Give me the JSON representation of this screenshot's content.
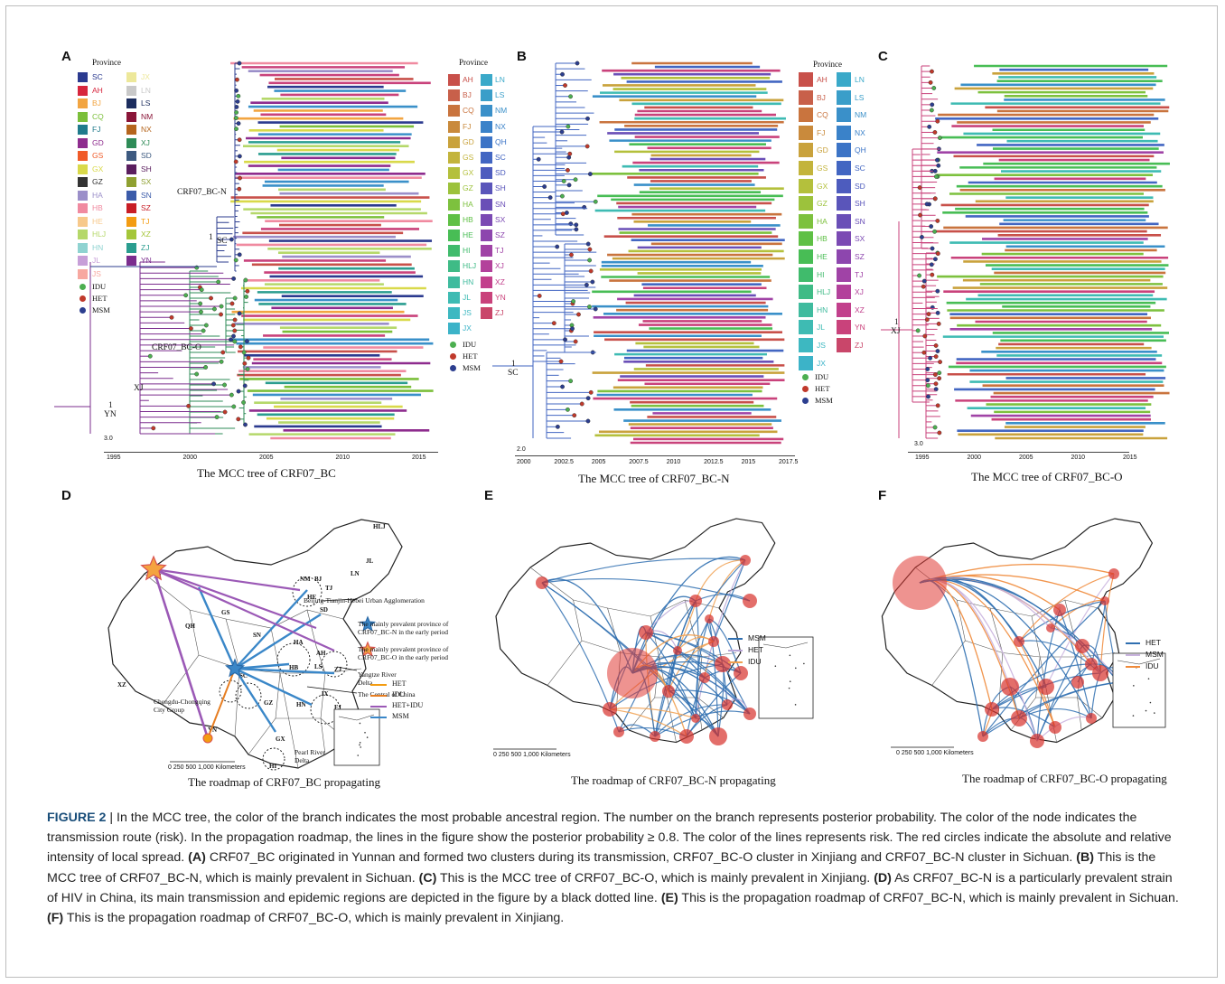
{
  "panels": {
    "A": {
      "label": "A",
      "title": "The MCC tree of CRF07_BC",
      "cluster_n": "CRF07_BC-N",
      "cluster_o": "CRF07_BC-O",
      "root_prob": "1",
      "root_region": "YN",
      "xj_label": "XJ",
      "sc_prob": "1",
      "sc_label": "SC",
      "scale": "3.0",
      "axis_ticks": [
        "1995",
        "2000",
        "2005",
        "2010",
        "2015"
      ]
    },
    "B": {
      "label": "B",
      "title": "The MCC tree of CRF07_BC-N",
      "root_prob": "1",
      "root_region": "SC",
      "scale": "2.0",
      "axis_ticks": [
        "2000",
        "2002.5",
        "2005",
        "2007.5",
        "2010",
        "2012.5",
        "2015",
        "2017.5"
      ]
    },
    "C": {
      "label": "C",
      "title": "The MCC tree of CRF07_BC-O",
      "root_prob": "1",
      "root_region": "XJ",
      "scale": "3.0",
      "axis_ticks": [
        "1995",
        "2000",
        "2005",
        "2010",
        "2015"
      ]
    },
    "D": {
      "label": "D",
      "title": "The roadmap of CRF07_BC propagating"
    },
    "E": {
      "label": "E",
      "title": "The roadmap of CRF07_BC-N propagating"
    },
    "F": {
      "label": "F",
      "title": "The roadmap of CRF07_BC-O propagating"
    }
  },
  "legend_A": {
    "heading": "Province",
    "col1": [
      {
        "code": "SC",
        "color": "#2b3a8f"
      },
      {
        "code": "AH",
        "color": "#d7263d"
      },
      {
        "code": "BJ",
        "color": "#f2a541"
      },
      {
        "code": "CQ",
        "color": "#7bbf3a"
      },
      {
        "code": "FJ",
        "color": "#1f7a8c"
      },
      {
        "code": "GD",
        "color": "#8e2c8e"
      },
      {
        "code": "GS",
        "color": "#f05a28"
      },
      {
        "code": "GX",
        "color": "#d9d94a"
      },
      {
        "code": "GZ",
        "color": "#333333"
      },
      {
        "code": "HA",
        "color": "#9b8fc9"
      },
      {
        "code": "HB",
        "color": "#f08aa0"
      },
      {
        "code": "HE",
        "color": "#f7c98b"
      },
      {
        "code": "HLJ",
        "color": "#b5d86a"
      },
      {
        "code": "HN",
        "color": "#8fd3d1"
      },
      {
        "code": "JL",
        "color": "#c79fd8"
      },
      {
        "code": "JS",
        "color": "#f7a8a0"
      }
    ],
    "col2": [
      {
        "code": "JX",
        "color": "#ede89a"
      },
      {
        "code": "LN",
        "color": "#c9c9c9"
      },
      {
        "code": "LS",
        "color": "#1c2d5e"
      },
      {
        "code": "NM",
        "color": "#8a1538"
      },
      {
        "code": "NX",
        "color": "#b5651d"
      },
      {
        "code": "XJ",
        "color": "#2e8b57"
      },
      {
        "code": "SD",
        "color": "#3d5a80"
      },
      {
        "code": "SH",
        "color": "#5a1e5e"
      },
      {
        "code": "SX",
        "color": "#8fa031"
      },
      {
        "code": "SN",
        "color": "#3b5ba9"
      },
      {
        "code": "SZ",
        "color": "#c81d25"
      },
      {
        "code": "TJ",
        "color": "#f39c12"
      },
      {
        "code": "XZ",
        "color": "#a4c639"
      },
      {
        "code": "ZJ",
        "color": "#2a9d8f"
      },
      {
        "code": "YN",
        "color": "#7b2d8e"
      }
    ],
    "routes": [
      {
        "name": "IDU",
        "color": "#4caf50"
      },
      {
        "name": "HET",
        "color": "#c0392b"
      },
      {
        "name": "MSM",
        "color": "#2c3e8f"
      }
    ]
  },
  "legend_B": {
    "heading": "Province",
    "col1": [
      {
        "code": "AH",
        "color": "#c8504a"
      },
      {
        "code": "BJ",
        "color": "#c8604a"
      },
      {
        "code": "CQ",
        "color": "#c9743e"
      },
      {
        "code": "FJ",
        "color": "#c98a3c"
      },
      {
        "code": "GD",
        "color": "#c9a23c"
      },
      {
        "code": "GS",
        "color": "#c3b43c"
      },
      {
        "code": "GX",
        "color": "#b4c03c"
      },
      {
        "code": "GZ",
        "color": "#9cc23c"
      },
      {
        "code": "HA",
        "color": "#7dc13e"
      },
      {
        "code": "HB",
        "color": "#5fc045"
      },
      {
        "code": "HE",
        "color": "#48bd55"
      },
      {
        "code": "HI",
        "color": "#40bb6c"
      },
      {
        "code": "HLJ",
        "color": "#3fbb86"
      },
      {
        "code": "HN",
        "color": "#3fbb9e"
      },
      {
        "code": "JL",
        "color": "#3ebbb3"
      },
      {
        "code": "JS",
        "color": "#3db8c1"
      },
      {
        "code": "JX",
        "color": "#3cb3c8"
      }
    ],
    "col2": [
      {
        "code": "LN",
        "color": "#3aa9c9"
      },
      {
        "code": "LS",
        "color": "#3a9ec9"
      },
      {
        "code": "NM",
        "color": "#3a90c9"
      },
      {
        "code": "NX",
        "color": "#3a82c9"
      },
      {
        "code": "QH",
        "color": "#3c74c6"
      },
      {
        "code": "SC",
        "color": "#4266c2"
      },
      {
        "code": "SD",
        "color": "#4d5cbe"
      },
      {
        "code": "SH",
        "color": "#5a55ba"
      },
      {
        "code": "SN",
        "color": "#6a4fb7"
      },
      {
        "code": "SX",
        "color": "#7b4ab3"
      },
      {
        "code": "SZ",
        "color": "#8d46ae"
      },
      {
        "code": "TJ",
        "color": "#a043a6"
      },
      {
        "code": "XJ",
        "color": "#b3419b"
      },
      {
        "code": "XZ",
        "color": "#c2408c"
      },
      {
        "code": "YN",
        "color": "#c9427b"
      },
      {
        "code": "ZJ",
        "color": "#c9466a"
      }
    ],
    "routes": [
      {
        "name": "IDU",
        "color": "#4caf50"
      },
      {
        "name": "HET",
        "color": "#c0392b"
      },
      {
        "name": "MSM",
        "color": "#2c3e8f"
      }
    ]
  },
  "map_D": {
    "provinces": [
      "XJ",
      "XZ",
      "QH",
      "GS",
      "NM",
      "HLJ",
      "JL",
      "LN",
      "SD",
      "SN",
      "SC",
      "YN",
      "GZ",
      "GX",
      "HN",
      "HB",
      "AH",
      "ZJ",
      "JX",
      "FJ",
      "HA",
      "TW",
      "HI",
      "LS",
      "BJ",
      "TJ",
      "HE"
    ],
    "annotations": {
      "bth": "Beijing-Tianjin-Hebei Urban Agglomeration",
      "star_n": "The mainly prevalent province of CRF07_BC-N in the early period",
      "star_o": "The mainly prevalent province of CRF07_BC-O in the early period",
      "yangtze": "Yangtze River Delta",
      "central": "The Central of China",
      "chengdu": "Chengdu-Chongqing City Group",
      "pearl": "Pearl River Delta"
    },
    "legend": [
      {
        "name": "HET",
        "color": "#f39c12"
      },
      {
        "name": "IDU",
        "color": "#e67e22"
      },
      {
        "name": "HET+IDU",
        "color": "#9b59b6"
      },
      {
        "name": "MSM",
        "color": "#3a87c8"
      }
    ],
    "scale_text": "0  250  500      1,000 Kilometers"
  },
  "map_E": {
    "legend": [
      {
        "name": "MSM",
        "color": "#2f6fb0"
      },
      {
        "name": "HET",
        "color": "#b9a5d6"
      },
      {
        "name": "IDU",
        "color": "#f0a050"
      }
    ],
    "scale_text": "0  250  500      1,000 Kilometers"
  },
  "map_F": {
    "legend": [
      {
        "name": "HET",
        "color": "#2f6fb0"
      },
      {
        "name": "MSM",
        "color": "#c9b3de"
      },
      {
        "name": "IDU",
        "color": "#f08a3a"
      }
    ],
    "scale_text": "0  250  500      1,000 Kilometers"
  },
  "caption": {
    "fig": "FIGURE 2",
    "sep": " | ",
    "intro": "In the MCC tree, the color of the branch indicates the most probable ancestral region. The number on the branch represents posterior probability. The color of the node indicates the transmission route (risk). In the propagation roadmap, the lines in the figure show the posterior probability ≥ 0.8. The color of the lines represents risk. The red circles indicate the absolute and relative intensity of local spread.",
    "a_label": "(A)",
    "a_text": "CRF07_BC originated in Yunnan and formed two clusters during its transmission, CRF07_BC-O cluster in Xinjiang and CRF07_BC-N cluster in Sichuan.",
    "b_label": "(B)",
    "b_text": "This is the MCC tree of CRF07_BC-N, which is mainly prevalent in Sichuan.",
    "c_label": "(C)",
    "c_text": "This is the MCC tree of CRF07_BC-O, which is mainly prevalent in Xinjiang.",
    "d_label": "(D)",
    "d_text": "As CRF07_BC-N is a particularly prevalent strain of HIV in China, its main transmission and epidemic regions are depicted in the figure by a black dotted line.",
    "e_label": "(E)",
    "e_text": "This is the propagation roadmap of CRF07_BC-N, which is mainly prevalent in Sichuan.",
    "f_label": "(F)",
    "f_text": "This is the propagation roadmap of CRF07_BC-O, which is mainly prevalent in Xinjiang."
  }
}
